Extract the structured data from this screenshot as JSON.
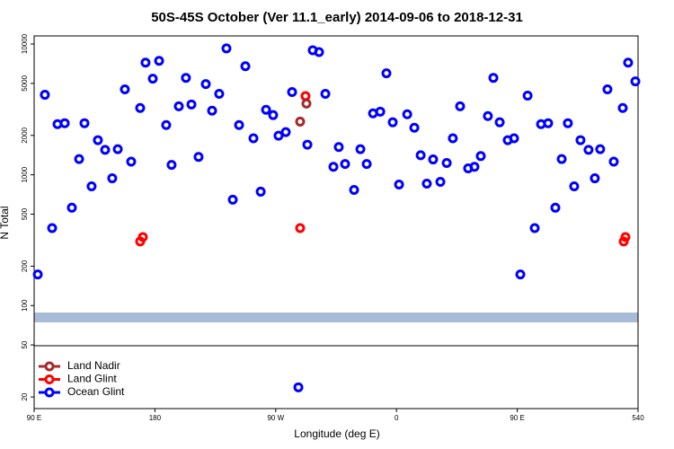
{
  "chart_data": {
    "type": "scatter",
    "title": "50S-45S October (Ver 11.1_early)   2014-09-06 to 2018-12-31",
    "xlabel": "Longitude (deg E)",
    "ylabel": "N Total",
    "log_y": true,
    "legend": "lower left",
    "xlim": [
      90,
      540
    ],
    "xticks": [
      {
        "value": 90,
        "label": "90 E"
      },
      180,
      {
        "value": 270,
        "label": "90 W"
      },
      {
        "value": 360,
        "label": "0"
      },
      {
        "value": 450,
        "label": "90 E"
      },
      540
    ],
    "ylim": [
      16.3,
      11530
    ],
    "yticks": [
      20,
      50,
      100,
      200,
      500,
      1000,
      2000,
      5000,
      10000
    ],
    "series": [
      {
        "name": "Land Nadir",
        "color": "#a52a2a",
        "x": [
          288.2,
          292.9
        ],
        "values": [
          2550,
          3500
        ]
      },
      {
        "name": "Land Glint",
        "color": "#ff0000",
        "x": [
          169.0,
          171.0,
          288.2,
          292.2,
          529.3,
          530.6
        ],
        "values": [
          309,
          334,
          391,
          4000,
          309,
          334
        ]
      },
      {
        "name": "Ocean Glint",
        "color": "#0000ff",
        "x": [
          92.7,
          98.0,
          103.4,
          107.4,
          112.8,
          118.1,
          123.5,
          127.5,
          132.8,
          137.5,
          142.9,
          148.2,
          152.3,
          157.6,
          162.3,
          169.0,
          173.0,
          178.4,
          183.1,
          188.4,
          192.4,
          197.8,
          203.1,
          207.2,
          212.5,
          217.9,
          222.6,
          227.9,
          233.3,
          238.0,
          242.7,
          247.4,
          253.4,
          258.8,
          262.8,
          268.1,
          272.1,
          277.5,
          282.2,
          297.6,
          302.3,
          307.0,
          293.6,
          313.0,
          317.0,
          321.7,
          328.4,
          333.1,
          337.8,
          342.5,
          347.9,
          352.5,
          357.2,
          361.9,
          368.0,
          373.3,
          378.0,
          382.6,
          387.3,
          392.7,
          397.4,
          402.0,
          407.4,
          413.4,
          418.1,
          422.8,
          432.2,
          428.1,
          436.9,
          442.9,
          447.6,
          452.3,
          457.7,
          463.0,
          467.7,
          473.0,
          478.4,
          483.1,
          487.7,
          492.4,
          497.1,
          503.1,
          507.8,
          511.8,
          517.2,
          521.9,
          528.6,
          532.6,
          538.0,
          286.9
        ],
        "values": [
          173,
          4090,
          391,
          2440,
          2480,
          560,
          1320,
          2480,
          816,
          1840,
          1550,
          940,
          1570,
          4500,
          1260,
          3240,
          7200,
          5430,
          7430,
          2400,
          1190,
          3340,
          5510,
          3450,
          1370,
          4940,
          3090,
          4160,
          9250,
          645,
          2400,
          6760,
          1900,
          743,
          3140,
          2860,
          1990,
          2120,
          4290,
          8960,
          8680,
          4160,
          1700,
          1150,
          1630,
          1210,
          766,
          1570,
          1210,
          2950,
          3040,
          5970,
          2520,
          842,
          2900,
          2290,
          1410,
          855,
          1310,
          883,
          1230,
          1900,
          3340,
          1120,
          1150,
          1390,
          5510,
          2810,
          2520,
          1840,
          1900,
          173,
          4030,
          391,
          2440,
          2480,
          560,
          1320,
          2480,
          816,
          1840,
          1550,
          940,
          1570,
          4500,
          1260,
          3240,
          7200,
          5180,
          23.7
        ]
      }
    ]
  }
}
